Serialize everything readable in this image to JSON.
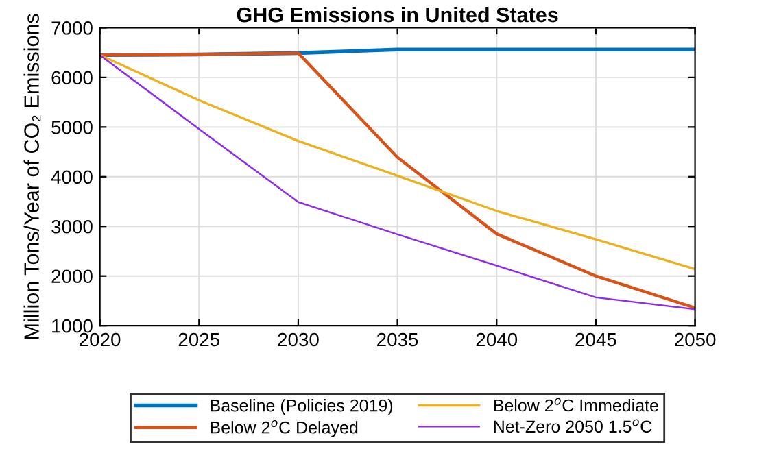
{
  "chart_data": {
    "type": "line",
    "title": "GHG Emissions in United States",
    "ylabel": "Million Tons/Year of CO₂ Emissions",
    "x": [
      2020,
      2025,
      2030,
      2035,
      2040,
      2045,
      2050
    ],
    "series": [
      {
        "name": "Baseline (Policies 2019)",
        "color": "#0072bd",
        "values": [
          6450,
          6460,
          6490,
          6560,
          6560,
          6560,
          6560
        ]
      },
      {
        "name": "Below 2$^{o}$C Delayed",
        "color": "#d95319",
        "values": [
          6450,
          6460,
          6490,
          4390,
          2850,
          2000,
          1360
        ]
      },
      {
        "name": "Below 2$^{o}$C Immediate",
        "color": "#edb120",
        "values": [
          6450,
          5540,
          4720,
          4020,
          3310,
          2740,
          2140
        ]
      },
      {
        "name": "Net-Zero 2050 1.5$^{o}$C",
        "color": "#8e2de2",
        "values": [
          6450,
          4960,
          3490,
          2840,
          2210,
          1570,
          1330
        ]
      }
    ],
    "xlim": [
      2020,
      2050
    ],
    "xticks": [
      2020,
      2025,
      2030,
      2035,
      2040,
      2045,
      2050
    ],
    "ylim": [
      1000,
      7000
    ],
    "yticks": [
      1000,
      2000,
      3000,
      4000,
      5000,
      6000,
      7000
    ],
    "grid": true,
    "legend": "bottom",
    "marker": "none",
    "line_style": "solid"
  }
}
